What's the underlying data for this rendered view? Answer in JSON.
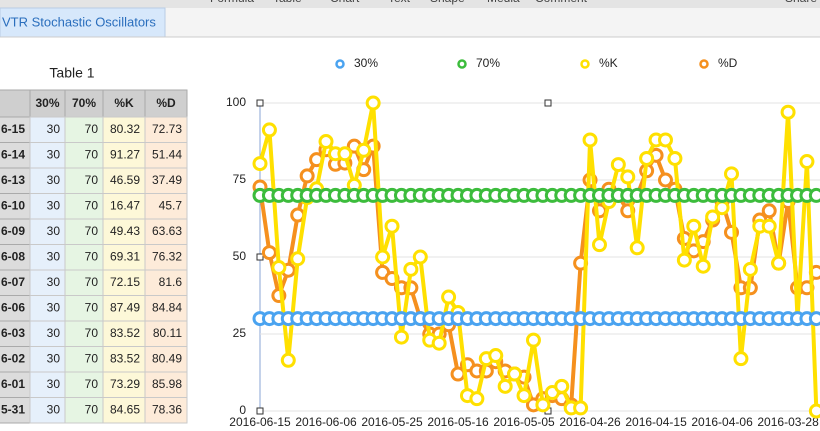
{
  "toolbar": [
    "Formula",
    "Table",
    "Chart",
    "Text",
    "Shape",
    "Media",
    "Comment",
    "Share"
  ],
  "sheet_tab": "VTR Stochastic Oscillators",
  "table": {
    "title": "Table 1",
    "header": [
      "",
      "30%",
      "70%",
      "%K",
      "%D"
    ],
    "rows": [
      [
        "6-15",
        30,
        70,
        80.32,
        72.73
      ],
      [
        "6-14",
        30,
        70,
        91.27,
        51.44
      ],
      [
        "6-13",
        30,
        70,
        46.59,
        37.49
      ],
      [
        "6-10",
        30,
        70,
        16.47,
        45.7
      ],
      [
        "6-09",
        30,
        70,
        49.43,
        63.63
      ],
      [
        "6-08",
        30,
        70,
        69.31,
        76.32
      ],
      [
        "6-07",
        30,
        70,
        72.15,
        81.6
      ],
      [
        "6-06",
        30,
        70,
        87.49,
        84.84
      ],
      [
        "6-03",
        30,
        70,
        83.52,
        80.11
      ],
      [
        "6-02",
        30,
        70,
        83.52,
        80.49
      ],
      [
        "6-01",
        30,
        70,
        73.29,
        85.98
      ],
      [
        "5-31",
        30,
        70,
        84.65,
        78.36
      ]
    ]
  },
  "chart_data": {
    "type": "line",
    "categories": [
      "2016-06-15",
      null,
      null,
      null,
      null,
      null,
      null,
      "2016-06-06",
      null,
      null,
      null,
      null,
      null,
      null,
      "2016-05-25",
      null,
      null,
      null,
      null,
      null,
      null,
      "2016-05-16",
      null,
      null,
      null,
      null,
      null,
      null,
      "2016-05-05",
      null,
      null,
      null,
      null,
      null,
      null,
      "2016-04-26",
      null,
      null,
      null,
      null,
      null,
      null,
      "2016-04-15",
      null,
      null,
      null,
      null,
      null,
      null,
      "2016-04-06",
      null,
      null,
      null,
      null,
      null,
      null,
      "2016-03-28",
      null,
      null,
      null
    ],
    "series": [
      {
        "name": "30%",
        "color": "#4aa3f0",
        "values": [
          30,
          30,
          30,
          30,
          30,
          30,
          30,
          30,
          30,
          30,
          30,
          30,
          30,
          30,
          30,
          30,
          30,
          30,
          30,
          30,
          30,
          30,
          30,
          30,
          30,
          30,
          30,
          30,
          30,
          30,
          30,
          30,
          30,
          30,
          30,
          30,
          30,
          30,
          30,
          30,
          30,
          30,
          30,
          30,
          30,
          30,
          30,
          30,
          30,
          30,
          30,
          30,
          30,
          30,
          30,
          30,
          30,
          30,
          30,
          30
        ]
      },
      {
        "name": "70%",
        "color": "#3cbc3c",
        "values": [
          70,
          70,
          70,
          70,
          70,
          70,
          70,
          70,
          70,
          70,
          70,
          70,
          70,
          70,
          70,
          70,
          70,
          70,
          70,
          70,
          70,
          70,
          70,
          70,
          70,
          70,
          70,
          70,
          70,
          70,
          70,
          70,
          70,
          70,
          70,
          70,
          70,
          70,
          70,
          70,
          70,
          70,
          70,
          70,
          70,
          70,
          70,
          70,
          70,
          70,
          70,
          70,
          70,
          70,
          70,
          70,
          70,
          70,
          70,
          70
        ]
      },
      {
        "name": "%K",
        "color": "#ffe000",
        "values": [
          80.32,
          91.27,
          46.59,
          16.47,
          49.43,
          69.31,
          72.15,
          87.49,
          83.52,
          83.52,
          73.29,
          84.65,
          100,
          50,
          60,
          24,
          46,
          50,
          23,
          22,
          37,
          32,
          5,
          4,
          17,
          18,
          8,
          12,
          5,
          23,
          2,
          6,
          8,
          1,
          1,
          88,
          54,
          68,
          80,
          76,
          53,
          82,
          88,
          88,
          82,
          49,
          60,
          47,
          63,
          66,
          77,
          17,
          46,
          60,
          60,
          48,
          97,
          30,
          81,
          0
        ]
      },
      {
        "name": "%D",
        "color": "#f5901e",
        "values": [
          72.73,
          51.44,
          37.49,
          45.7,
          63.63,
          76.32,
          81.6,
          84.84,
          80.11,
          80.49,
          85.98,
          78.36,
          86,
          45,
          43,
          40,
          40,
          30,
          25,
          25,
          28,
          12,
          15,
          13,
          13,
          16,
          13,
          12,
          11,
          2,
          4,
          5,
          4,
          2,
          48,
          75,
          65,
          72,
          70,
          65,
          70,
          78,
          83,
          75,
          72,
          56,
          52,
          55,
          62,
          68,
          58,
          40,
          40,
          62,
          65,
          48,
          68,
          40,
          40,
          45
        ]
      }
    ],
    "ylim": [
      0,
      100
    ],
    "yticks": [
      0,
      25,
      50,
      75,
      100
    ],
    "grid": true,
    "legend": "top"
  }
}
